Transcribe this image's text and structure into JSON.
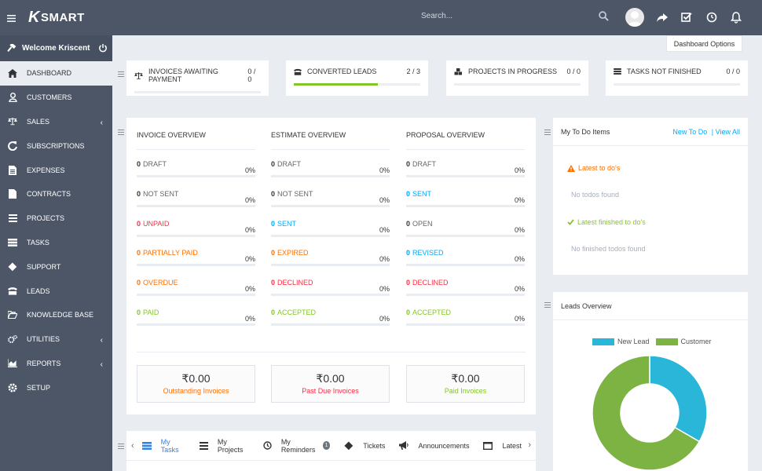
{
  "app": {
    "logo_prefix": "K",
    "logo_text": "SMART"
  },
  "header": {
    "search_placeholder": "Search..."
  },
  "sidebar": {
    "welcome": "Welcome Kriscent",
    "items": [
      {
        "label": "DASHBOARD",
        "icon": "home-icon",
        "active": true
      },
      {
        "label": "CUSTOMERS",
        "icon": "user-icon"
      },
      {
        "label": "SALES",
        "icon": "balance-scale-icon",
        "has_submenu": true
      },
      {
        "label": "SUBSCRIPTIONS",
        "icon": "refresh-icon"
      },
      {
        "label": "EXPENSES",
        "icon": "file-text-icon"
      },
      {
        "label": "CONTRACTS",
        "icon": "file-icon"
      },
      {
        "label": "PROJECTS",
        "icon": "bars-icon"
      },
      {
        "label": "TASKS",
        "icon": "tasks-icon"
      },
      {
        "label": "SUPPORT",
        "icon": "ticket-icon"
      },
      {
        "label": "LEADS",
        "icon": "tty-icon"
      },
      {
        "label": "KNOWLEDGE BASE",
        "icon": "folder-open-icon"
      },
      {
        "label": "UTILITIES",
        "icon": "cogs-icon",
        "has_submenu": true
      },
      {
        "label": "REPORTS",
        "icon": "area-chart-icon",
        "has_submenu": true
      },
      {
        "label": "SETUP",
        "icon": "gear-icon"
      }
    ]
  },
  "dashboard_options": "Dashboard Options",
  "stats": [
    {
      "label": "INVOICES AWAITING PAYMENT",
      "value": "0 / 0",
      "progress": 0
    },
    {
      "label": "CONVERTED LEADS",
      "value": "2 / 3",
      "progress": 0.667
    },
    {
      "label": "PROJECTS IN PROGRESS",
      "value": "0 / 0",
      "progress": 0
    },
    {
      "label": "TASKS NOT FINISHED",
      "value": "0 / 0",
      "progress": 0
    }
  ],
  "overview": {
    "columns": [
      {
        "title": "INVOICE OVERVIEW",
        "rows": [
          {
            "count": "0",
            "status": "DRAFT",
            "pct": "0%",
            "color": "gray"
          },
          {
            "count": "0",
            "status": "NOT SENT",
            "pct": "0%",
            "color": "gray"
          },
          {
            "count": "0",
            "status": "UNPAID",
            "pct": "0%",
            "color": "red"
          },
          {
            "count": "0",
            "status": "PARTIALLY PAID",
            "pct": "0%",
            "color": "orange"
          },
          {
            "count": "0",
            "status": "OVERDUE",
            "pct": "0%",
            "color": "orange"
          },
          {
            "count": "0",
            "status": "PAID",
            "pct": "0%",
            "color": "green"
          }
        ],
        "total": {
          "amount": "₹0.00",
          "caption": "Outstanding Invoices",
          "color": "orange"
        }
      },
      {
        "title": "ESTIMATE OVERVIEW",
        "rows": [
          {
            "count": "0",
            "status": "DRAFT",
            "pct": "0%",
            "color": "gray"
          },
          {
            "count": "0",
            "status": "NOT SENT",
            "pct": "0%",
            "color": "gray"
          },
          {
            "count": "0",
            "status": "SENT",
            "pct": "0%",
            "color": "blue"
          },
          {
            "count": "0",
            "status": "EXPIRED",
            "pct": "0%",
            "color": "orange"
          },
          {
            "count": "0",
            "status": "DECLINED",
            "pct": "0%",
            "color": "red"
          },
          {
            "count": "0",
            "status": "ACCEPTED",
            "pct": "0%",
            "color": "green"
          }
        ],
        "total": {
          "amount": "₹0.00",
          "caption": "Past Due Invoices",
          "color": "red"
        }
      },
      {
        "title": "PROPOSAL OVERVIEW",
        "rows": [
          {
            "count": "0",
            "status": "DRAFT",
            "pct": "0%",
            "color": "gray"
          },
          {
            "count": "0",
            "status": "SENT",
            "pct": "0%",
            "color": "blue"
          },
          {
            "count": "0",
            "status": "OPEN",
            "pct": "0%",
            "color": "gray"
          },
          {
            "count": "0",
            "status": "REVISED",
            "pct": "0%",
            "color": "blue"
          },
          {
            "count": "0",
            "status": "DECLINED",
            "pct": "0%",
            "color": "red"
          },
          {
            "count": "0",
            "status": "ACCEPTED",
            "pct": "0%",
            "color": "green"
          }
        ],
        "total": {
          "amount": "₹0.00",
          "caption": "Paid Invoices",
          "color": "green"
        }
      }
    ]
  },
  "todo": {
    "title": "My To Do Items",
    "new_link": "New To Do",
    "view_all": "| View All",
    "latest_title": "Latest to do's",
    "latest_empty": "No todos found",
    "finished_title": "Latest finished to do's",
    "finished_empty": "No finished todos found"
  },
  "leads_overview": {
    "title": "Leads Overview"
  },
  "chart_data": {
    "type": "pie",
    "categories": [
      "New Lead",
      "Customer"
    ],
    "values": [
      1,
      2
    ],
    "colors": [
      "#29b6d8",
      "#7cb342"
    ],
    "legend": "top"
  },
  "tabs": [
    {
      "label": "My Tasks",
      "icon": "tasks-icon",
      "active": true
    },
    {
      "label": "My Projects",
      "icon": "bars-icon"
    },
    {
      "label": "My Reminders",
      "icon": "clock-icon",
      "badge": "1"
    },
    {
      "label": "Tickets",
      "icon": "ticket-icon"
    },
    {
      "label": "Announcements",
      "icon": "bullhorn-icon"
    },
    {
      "label": "Latest",
      "icon": "window-icon"
    }
  ],
  "colors": {
    "sidebar_bg": "#4c5667",
    "content_bg": "#e9ecf1",
    "accent_blue": "#03a9f4",
    "green": "#84c529",
    "red": "#fc2d42",
    "orange": "#ff6f00"
  }
}
